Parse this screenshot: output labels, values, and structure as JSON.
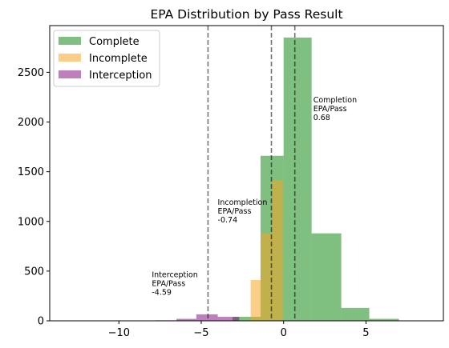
{
  "chart_data": {
    "type": "histogram",
    "title": "EPA Distribution by Pass Result",
    "xlabel": "",
    "ylabel": "",
    "xlim": [
      -14.2,
      9.7
    ],
    "ylim": [
      0,
      2970
    ],
    "xticks": [
      -10,
      -5,
      0,
      5
    ],
    "xtick_labels": [
      "−10",
      "−5",
      "0",
      "5"
    ],
    "yticks": [
      0,
      500,
      1000,
      1500,
      2000,
      2500
    ],
    "yticks_labels": [
      "0",
      "500",
      "1000",
      "1500",
      "2000",
      "2500"
    ],
    "grid": false,
    "legend_position": "top-left",
    "series": [
      {
        "name": "Complete",
        "color": "#008000",
        "opacity": 0.5,
        "bins": [
          {
            "x0": -3.1,
            "x1": -1.4,
            "value": 40
          },
          {
            "x0": -1.4,
            "x1": 0.0,
            "value": 1660
          },
          {
            "x0": 0.0,
            "x1": 1.7,
            "value": 2850
          },
          {
            "x0": 1.7,
            "x1": 3.5,
            "value": 880
          },
          {
            "x0": 3.5,
            "x1": 5.2,
            "value": 130
          },
          {
            "x0": 5.2,
            "x1": 7.0,
            "value": 20
          }
        ]
      },
      {
        "name": "Incomplete",
        "color": "#f5a623",
        "opacity": 0.55,
        "bins": [
          {
            "x0": -2.0,
            "x1": -1.4,
            "value": 410
          },
          {
            "x0": -1.4,
            "x1": -0.7,
            "value": 880
          },
          {
            "x0": -0.7,
            "x1": -0.05,
            "value": 1410
          }
        ]
      },
      {
        "name": "Interception",
        "color": "#800080",
        "opacity": 0.5,
        "bins": [
          {
            "x0": -7.8,
            "x1": -6.5,
            "value": 5
          },
          {
            "x0": -6.5,
            "x1": -5.3,
            "value": 20
          },
          {
            "x0": -5.3,
            "x1": -4.0,
            "value": 65
          },
          {
            "x0": -4.0,
            "x1": -2.7,
            "value": 40
          }
        ]
      }
    ],
    "vlines": [
      {
        "x": -4.59,
        "label": [
          "Interception",
          "EPA/Pass",
          "-4.59"
        ],
        "label_x": -8.0,
        "label_y": 260
      },
      {
        "x": -0.74,
        "label": [
          "Incompletion",
          "EPA/Pass",
          "-0.74"
        ],
        "label_x": -4.0,
        "label_y": 990
      },
      {
        "x": 0.68,
        "label": [
          "Completion",
          "EPA/Pass",
          "0.68"
        ],
        "label_x": 1.8,
        "label_y": 2020
      }
    ],
    "legend": [
      {
        "name": "Complete",
        "color": "#008000"
      },
      {
        "name": "Incomplete",
        "color": "#f5a623"
      },
      {
        "name": "Interception",
        "color": "#800080"
      }
    ]
  }
}
